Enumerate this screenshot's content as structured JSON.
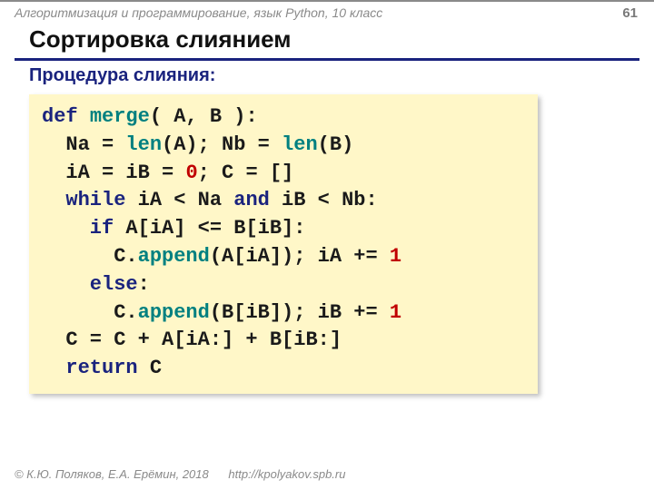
{
  "colors": {
    "breadcrumb": "#8a8a8a",
    "pagenum": "#7a7a7a",
    "title_color": "#111111",
    "underline": "#1a237e",
    "subtitle": "#1a237e",
    "code_bg": "#fff7c8",
    "code_text": "#1a1a1a",
    "kw_def": "#1a237e",
    "kw_blue": "#1a237e",
    "kw_func": "#1a237e",
    "ident_teal": "#008080",
    "num_red": "#c00000",
    "footer": "#8a8a8a",
    "footer_link": "#8a8a8a",
    "background": "#ffffff"
  },
  "header": {
    "breadcrumb": "Алгоритмизация и программирование, язык Python, 10 класс",
    "page": "61"
  },
  "title": "Сортировка слиянием",
  "subtitle": "Процедура слияния:",
  "code": {
    "line1": {
      "def": "def",
      "name": "merge",
      "rest": "( A, B ):"
    },
    "line2": {
      "a": "  Na = ",
      "len1": "len",
      "b": "(A); Nb = ",
      "len2": "len",
      "c": "(B)"
    },
    "line3": {
      "a": "  iA = iB = ",
      "zero": "0",
      "b": "; C = []"
    },
    "line4": {
      "while": "  while",
      "a": " iA < Na ",
      "and": "and",
      "b": " iB < Nb:"
    },
    "line5": {
      "if": "    if",
      "a": " A[iA] <= B[iB]:"
    },
    "line6": {
      "a": "      C.",
      "append": "append",
      "b": "(A[iA]); iA += ",
      "one": "1"
    },
    "line7": {
      "else": "    else",
      "a": ":"
    },
    "line8": {
      "a": "      C.",
      "append": "append",
      "b": "(B[iB]); iB += ",
      "one": "1"
    },
    "line9": {
      "a": "  C = C + A[iA:] + B[iB:]"
    },
    "line10": {
      "return": "  return",
      "a": " C"
    }
  },
  "footer": {
    "copyright": "© К.Ю. Поляков, Е.А. Ерёмин, 2018",
    "url": "http://kpolyakov.spb.ru"
  }
}
